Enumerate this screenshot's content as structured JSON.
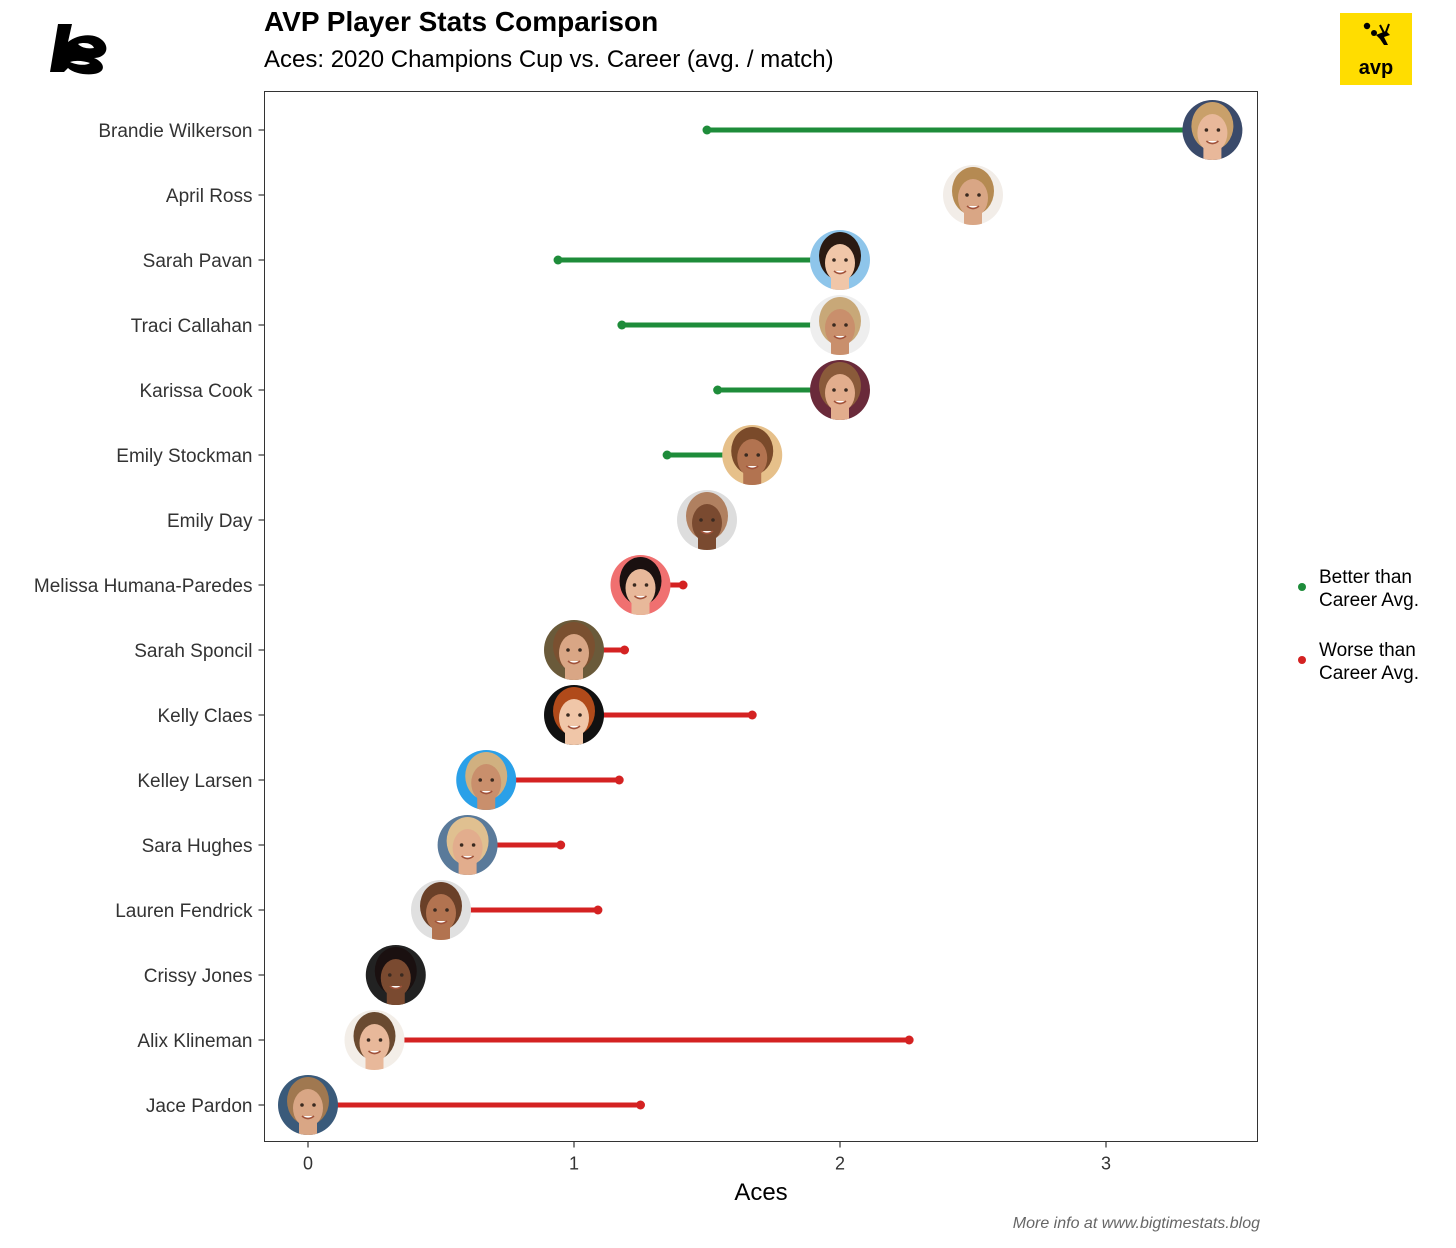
{
  "title": "AVP Player Stats Comparison",
  "subtitle": "Aces: 2020 Champions Cup vs. Career (avg. / match)",
  "brand_logo": "bigtimestats-logo",
  "avp_logo": {
    "text": "avp",
    "icon": "volleyball-player-icon",
    "color": "#ffdd00"
  },
  "caption": "More info at www.bigtimestats.blog",
  "colors": {
    "better": "#1e8c3a",
    "worse": "#d42222"
  },
  "chart_data": {
    "type": "dumbbell",
    "title": "AVP Player Stats Comparison",
    "subtitle": "Aces: 2020 Champions Cup vs. Career (avg. / match)",
    "xlabel": "Aces",
    "ylabel": "",
    "xlim": [
      -0.17,
      3.56
    ],
    "x_ticks": [
      0,
      1,
      2,
      3
    ],
    "grid": false,
    "legend_position": "right",
    "legend": [
      {
        "key": "better",
        "label_lines": [
          "Better than",
          "Career Avg."
        ]
      },
      {
        "key": "worse",
        "label_lines": [
          "Worse than",
          "Career Avg."
        ]
      }
    ],
    "players": [
      {
        "name": "Brandie Wilkerson",
        "champions_cup": 3.4,
        "career": 1.5,
        "status": "better"
      },
      {
        "name": "April Ross",
        "champions_cup": 2.5,
        "career": 2.5,
        "status": "better"
      },
      {
        "name": "Sarah Pavan",
        "champions_cup": 2.0,
        "career": 0.94,
        "status": "better"
      },
      {
        "name": "Traci Callahan",
        "champions_cup": 2.0,
        "career": 1.18,
        "status": "better"
      },
      {
        "name": "Karissa Cook",
        "champions_cup": 2.0,
        "career": 1.54,
        "status": "better"
      },
      {
        "name": "Emily Stockman",
        "champions_cup": 1.67,
        "career": 1.35,
        "status": "better"
      },
      {
        "name": "Emily Day",
        "champions_cup": 1.5,
        "career": 1.5,
        "status": "better"
      },
      {
        "name": "Melissa Humana-Paredes",
        "champions_cup": 1.25,
        "career": 1.41,
        "status": "worse"
      },
      {
        "name": "Sarah Sponcil",
        "champions_cup": 1.0,
        "career": 1.19,
        "status": "worse"
      },
      {
        "name": "Kelly Claes",
        "champions_cup": 1.0,
        "career": 1.67,
        "status": "worse"
      },
      {
        "name": "Kelley Larsen",
        "champions_cup": 0.67,
        "career": 1.17,
        "status": "worse"
      },
      {
        "name": "Sara Hughes",
        "champions_cup": 0.6,
        "career": 0.95,
        "status": "worse"
      },
      {
        "name": "Lauren Fendrick",
        "champions_cup": 0.5,
        "career": 1.09,
        "status": "worse"
      },
      {
        "name": "Crissy Jones",
        "champions_cup": 0.33,
        "career": 0.33,
        "status": "worse"
      },
      {
        "name": "Alix Klineman",
        "champions_cup": 0.25,
        "career": 2.26,
        "status": "worse"
      },
      {
        "name": "Jace Pardon",
        "champions_cup": 0.0,
        "career": 1.25,
        "status": "worse"
      }
    ]
  }
}
